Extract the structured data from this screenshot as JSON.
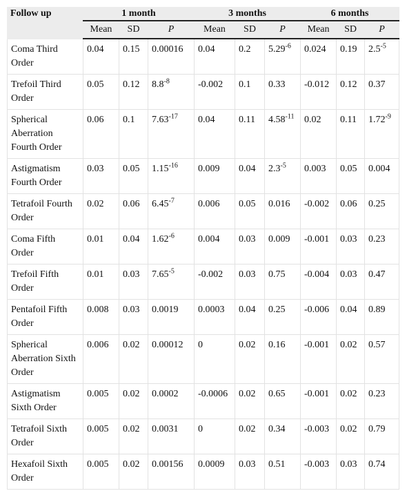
{
  "header": {
    "first": "Follow up",
    "groups": [
      "1 month",
      "3 months",
      "6 months"
    ],
    "sub": [
      "Mean",
      "SD",
      "P",
      "Mean",
      "SD",
      "P",
      "Mean",
      "SD",
      "P"
    ]
  },
  "rows": [
    {
      "label": "Coma Third Order",
      "cells": [
        "0.04",
        "0.15",
        "0.00016",
        "0.04",
        "0.2",
        {
          "base": "5.29",
          "sup": "-6"
        },
        "0.024",
        "0.19",
        {
          "base": "2.5",
          "sup": "-5"
        }
      ]
    },
    {
      "label": "Trefoil Third Order",
      "cells": [
        "0.05",
        "0.12",
        {
          "base": "8.8",
          "sup": "-8"
        },
        "-0.002",
        "0.1",
        "0.33",
        "-0.012",
        "0.12",
        "0.37"
      ]
    },
    {
      "label": "Spherical Aberration Fourth Order",
      "cells": [
        "0.06",
        "0.1",
        {
          "base": "7.63",
          "sup": "-17"
        },
        "0.04",
        "0.11",
        {
          "base": "4.58",
          "sup": "-11"
        },
        "0.02",
        "0.11",
        {
          "base": "1.72",
          "sup": "-9"
        }
      ]
    },
    {
      "label": "Astigmatism Fourth Order",
      "cells": [
        "0.03",
        "0.05",
        {
          "base": "1.15",
          "sup": "-16"
        },
        "0.009",
        "0.04",
        {
          "base": "2.3",
          "sup": "-5"
        },
        "0.003",
        "0.05",
        "0.004"
      ]
    },
    {
      "label": "Tetrafoil Fourth Order",
      "cells": [
        "0.02",
        "0.06",
        {
          "base": "6.45",
          "sup": "-7"
        },
        "0.006",
        "0.05",
        "0.016",
        "-0.002",
        "0.06",
        "0.25"
      ]
    },
    {
      "label": "Coma Fifth Order",
      "cells": [
        "0.01",
        "0.04",
        {
          "base": "1.62",
          "sup": "-6"
        },
        "0.004",
        "0.03",
        "0.009",
        "-0.001",
        "0.03",
        "0.23"
      ]
    },
    {
      "label": "Trefoil Fifth Order",
      "cells": [
        "0.01",
        "0.03",
        {
          "base": "7.65",
          "sup": "-5"
        },
        "-0.002",
        "0.03",
        "0.75",
        "-0.004",
        "0.03",
        "0.47"
      ]
    },
    {
      "label": "Pentafoil Fifth Order",
      "cells": [
        "0.008",
        "0.03",
        "0.0019",
        "0.0003",
        "0.04",
        "0.25",
        "-0.006",
        "0.04",
        "0.89"
      ]
    },
    {
      "label": "Spherical Aberration Sixth Order",
      "cells": [
        "0.006",
        "0.02",
        "0.00012",
        "0",
        "0.02",
        "0.16",
        "-0.001",
        "0.02",
        "0.57"
      ]
    },
    {
      "label": "Astigmatism Sixth Order",
      "cells": [
        "0.005",
        "0.02",
        "0.0002",
        "-0.0006",
        "0.02",
        "0.65",
        "-0.001",
        "0.02",
        "0.23"
      ]
    },
    {
      "label": "Tetrafoil Sixth Order",
      "cells": [
        "0.005",
        "0.02",
        "0.0031",
        "0",
        "0.02",
        "0.34",
        "-0.003",
        "0.02",
        "0.79"
      ]
    },
    {
      "label": "Hexafoil Sixth Order",
      "cells": [
        "0.005",
        "0.02",
        "0.00156",
        "0.0009",
        "0.03",
        "0.51",
        "-0.003",
        "0.03",
        "0.74"
      ]
    }
  ]
}
